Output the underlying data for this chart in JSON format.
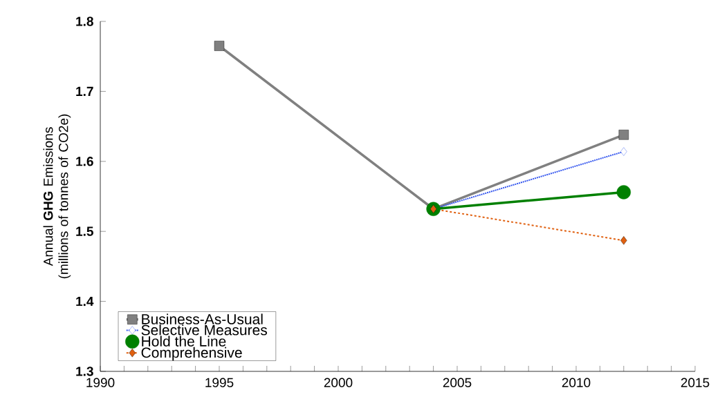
{
  "chart_data": {
    "type": "line",
    "ylabel": "Annual **GHG** Emissions (millions of tonnes of CO2e)",
    "xlim": [
      1990,
      2015
    ],
    "xticks": [
      1990,
      1995,
      2000,
      2005,
      2010,
      2015
    ],
    "ylim": [
      1.3,
      1.8
    ],
    "yticks": [
      1.3,
      1.4,
      1.5,
      1.6,
      1.7,
      1.8
    ],
    "grid": false,
    "legend": "bottom left",
    "series": [
      {
        "name": "Business-As-Usual",
        "color": "#808080",
        "x": [
          1995,
          2004,
          2012
        ],
        "values": [
          1.765,
          1.532,
          1.638
        ],
        "marker": "square",
        "line_style": "solid"
      },
      {
        "name": "Selective Measures",
        "color": "#3355ee",
        "x": [
          2004,
          2012
        ],
        "values": [
          1.532,
          1.614
        ],
        "marker": "diamond",
        "line_style": "dotted"
      },
      {
        "name": "Hold the Line",
        "color": "#008000",
        "x": [
          2004,
          2012
        ],
        "values": [
          1.532,
          1.556
        ],
        "marker": "circle",
        "line_style": "solid"
      },
      {
        "name": "Comprehensive",
        "color": "#e06010",
        "x": [
          2004,
          2012
        ],
        "values": [
          1.532,
          1.487
        ],
        "marker": "diamond",
        "line_style": "dashed"
      }
    ]
  }
}
